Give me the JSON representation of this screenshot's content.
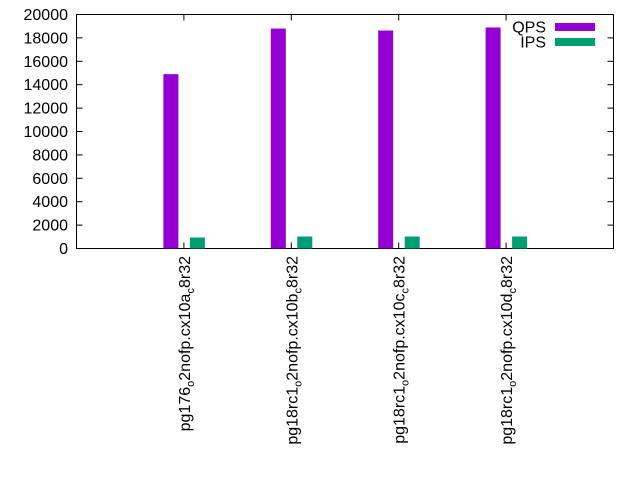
{
  "chart_data": {
    "type": "bar",
    "title": "",
    "xlabel": "",
    "ylabel": "",
    "ylim": [
      0,
      20000
    ],
    "yticks": [
      0,
      2000,
      4000,
      6000,
      8000,
      10000,
      12000,
      14000,
      16000,
      18000,
      20000
    ],
    "categories": [
      "pg176_o2nofp.cx10a_c8r32",
      "pg18rc1_o2nofp.cx10b_c8r32",
      "pg18rc1_o2nofp.cx10c_c8r32",
      "pg18rc1_o2nofp.cx10d_c8r32"
    ],
    "series": [
      {
        "name": "QPS",
        "color": "#9400d3",
        "values": [
          14900,
          18800,
          18630,
          18890
        ]
      },
      {
        "name": "IPS",
        "color": "#009e73",
        "values": [
          940,
          1025,
          1025,
          1025
        ]
      }
    ],
    "legend": "top-right",
    "grid": false
  }
}
